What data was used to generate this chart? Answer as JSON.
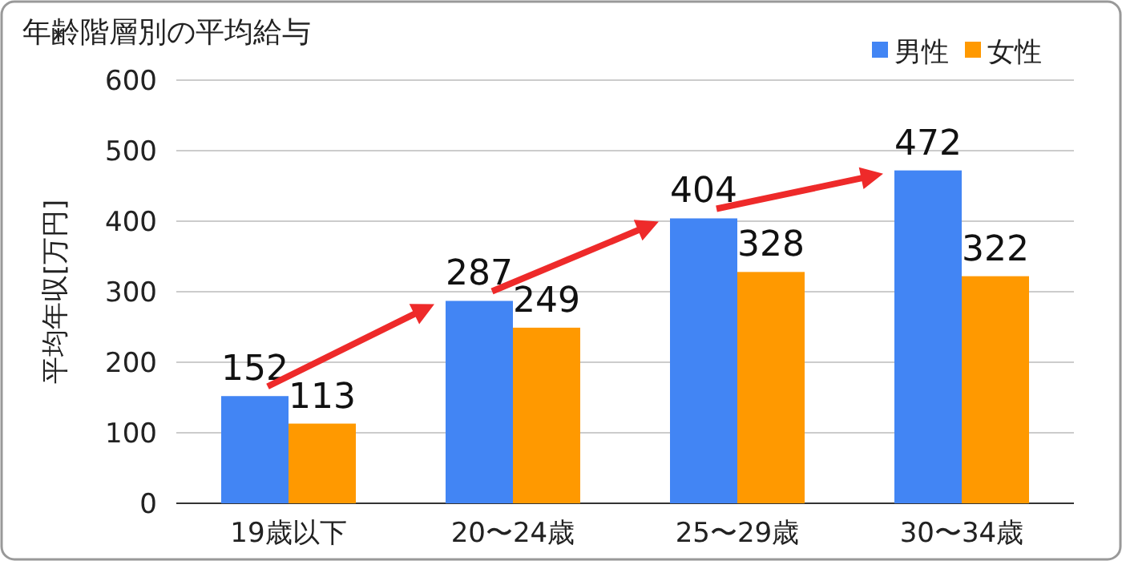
{
  "chart_data": {
    "type": "bar",
    "title": "年齢階層別の平均給与",
    "ylabel": "平均年収[万円]",
    "categories": [
      "19歳以下",
      "20〜24歳",
      "25〜29歳",
      "30〜34歳"
    ],
    "series": [
      {
        "name": "男性",
        "color": "#4285f4",
        "values": [
          152,
          287,
          404,
          472
        ]
      },
      {
        "name": "女性",
        "color": "#ff9900",
        "values": [
          113,
          249,
          328,
          322
        ]
      }
    ],
    "ylim": [
      0,
      600
    ],
    "yticks": [
      0,
      100,
      200,
      300,
      400,
      500,
      600
    ],
    "grid": "y",
    "legend": "top right",
    "data_labels": true
  }
}
